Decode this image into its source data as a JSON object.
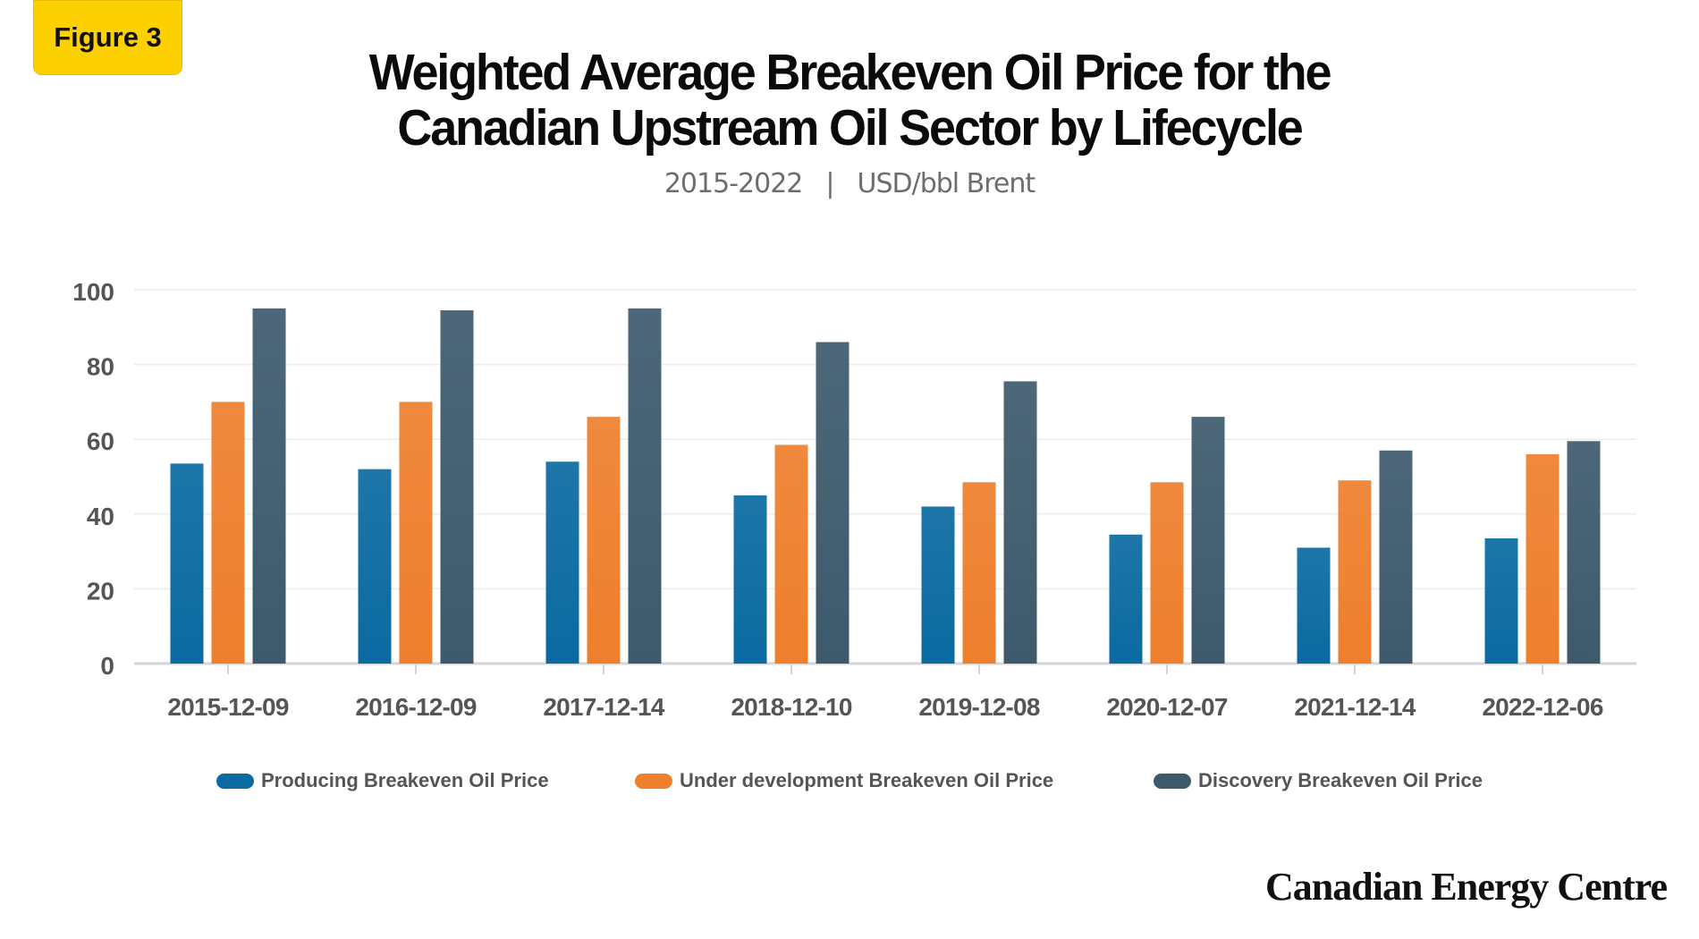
{
  "badge": "Figure 3",
  "title_line1": "Weighted Average Breakeven Oil Price for the",
  "title_line2": "Canadian Upstream Oil Sector by Lifecycle",
  "subtitle_years": "2015-2022",
  "subtitle_sep": "|",
  "subtitle_unit": "USD/bbl Brent",
  "brand": "Canadian Energy Centre",
  "colors": {
    "producing": "#0a6aa1",
    "under_development": "#ee7f2d",
    "discovery": "#3d5a6c",
    "axis": "#d5d5d5",
    "grid": "#ececec",
    "tick_text": "#555555"
  },
  "chart_data": {
    "type": "bar",
    "title": "Weighted Average Breakeven Oil Price for the Canadian Upstream Oil Sector by Lifecycle",
    "subtitle": "2015-2022 | USD/bbl Brent",
    "categories": [
      "2015-12-09",
      "2016-12-09",
      "2017-12-14",
      "2018-12-10",
      "2019-12-08",
      "2020-12-07",
      "2021-12-14",
      "2022-12-06"
    ],
    "series": [
      {
        "name": "Producing Breakeven Oil Price",
        "values": [
          53.5,
          52,
          54,
          45,
          42,
          34.5,
          31,
          33.5
        ]
      },
      {
        "name": "Under development Breakeven Oil Price",
        "values": [
          70,
          70,
          66,
          58.5,
          48.5,
          48.5,
          49,
          56
        ]
      },
      {
        "name": "Discovery Breakeven Oil Price",
        "values": [
          95,
          94.5,
          95,
          86,
          75.5,
          66,
          57,
          59.5
        ]
      }
    ],
    "yticks": [
      0,
      20,
      40,
      60,
      80,
      100
    ],
    "ylim": [
      0,
      100
    ],
    "grid": true,
    "legend_position": "bottom"
  }
}
